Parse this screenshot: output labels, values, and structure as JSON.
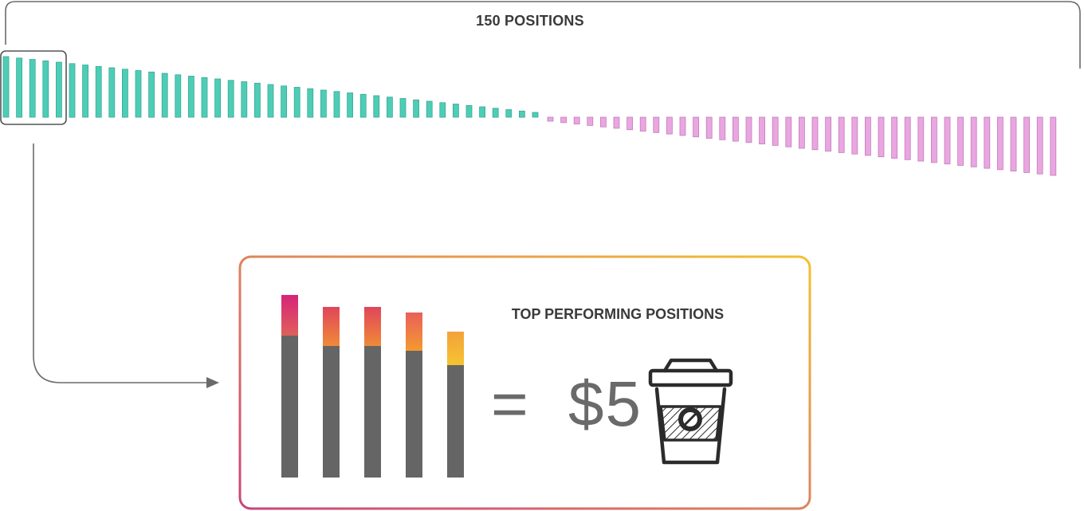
{
  "header": {
    "label": "150 POSITIONS"
  },
  "card": {
    "title": "TOP PERFORMING POSITIONS",
    "equals_sign": "=",
    "price": "$5"
  },
  "icons": {
    "coffee": "coffee-cup-icon",
    "arrow": "arrow-right-icon"
  },
  "colors": {
    "positive": "#4ecdb6",
    "negative": "#e9a6e0",
    "bar_base": "#656565",
    "gradient": [
      "#c8457b",
      "#f08a38",
      "#f4c030"
    ]
  },
  "chart_data": {
    "type": "bar",
    "positions_total": 150,
    "top_positions_highlighted": 5,
    "positive_side": {
      "count": 41,
      "trend": "decreasing toward center"
    },
    "negative_side": {
      "count": 39,
      "trend": "increasing toward right"
    },
    "top_five": {
      "base_values": [
        178,
        165,
        165,
        159,
        141
      ],
      "top_segment_values": [
        51,
        49,
        49,
        48,
        42
      ]
    }
  }
}
